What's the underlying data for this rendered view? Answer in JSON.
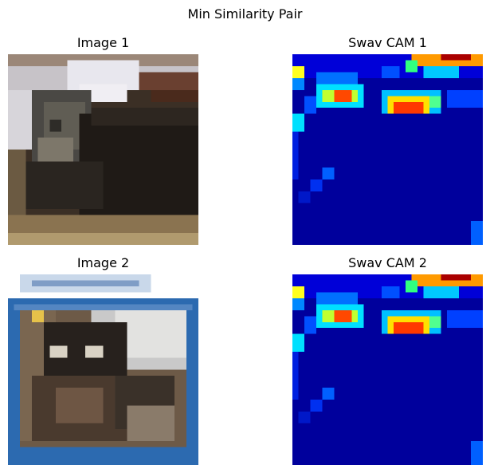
{
  "figure": {
    "title": "Min Similarity Pair"
  },
  "panels": [
    {
      "title": "Image 1",
      "kind": "photo",
      "description": "cat lying on a surface, dark body"
    },
    {
      "title": "Swav CAM 1",
      "kind": "heatmap",
      "colormap": "jet"
    },
    {
      "title": "Image 2",
      "kind": "photo",
      "description": "cat in a blue-bordered frame"
    },
    {
      "title": "Swav CAM 2",
      "kind": "heatmap",
      "colormap": "jet"
    }
  ],
  "colors": {
    "heat_background": "#00009c",
    "heat_low": "#0000ff",
    "heat_mid": "#00e0ff",
    "heat_high": "#ffff00",
    "heat_peak": "#aa0000"
  }
}
